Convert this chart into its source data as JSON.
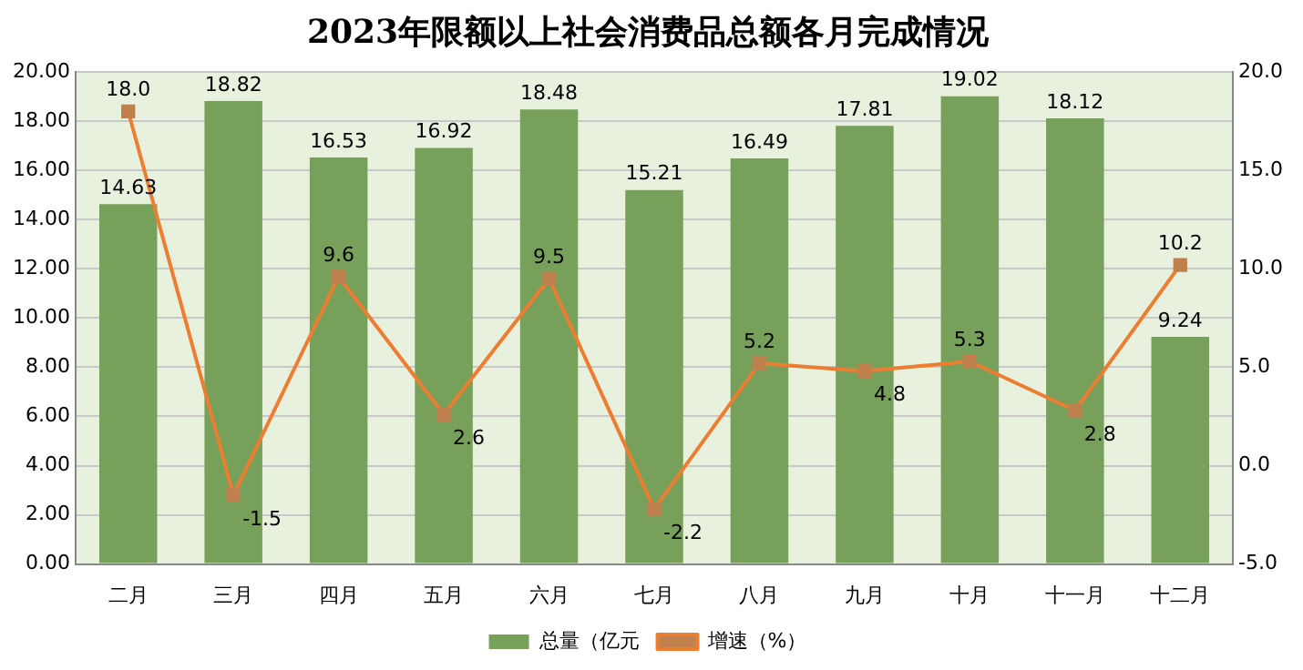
{
  "chart_data": {
    "type": "bar",
    "title": "2023年限额以上社会消费品总额各月完成情况",
    "categories": [
      "二月",
      "三月",
      "四月",
      "五月",
      "六月",
      "七月",
      "八月",
      "九月",
      "十月",
      "十一月",
      "十二月"
    ],
    "series": [
      {
        "name": "总量（亿元",
        "color": "#77a05a",
        "values": [
          14.63,
          18.82,
          16.53,
          16.92,
          18.48,
          15.21,
          16.49,
          17.81,
          19.02,
          18.12,
          9.24
        ],
        "value_labels": [
          "14.63",
          "18.82",
          "16.53",
          "16.92",
          "18.48",
          "15.21",
          "16.49",
          "17.81",
          "19.02",
          "18.12",
          "9.24"
        ]
      },
      {
        "name": "增速（%）",
        "type": "line",
        "axis": "y2",
        "color": "#ed7d31",
        "values": [
          18.0,
          -1.5,
          9.6,
          2.6,
          9.5,
          -2.2,
          5.2,
          4.8,
          5.3,
          2.8,
          10.2
        ],
        "value_labels": [
          "18.0",
          "-1.5",
          "9.6",
          "2.6",
          "9.5",
          "-2.2",
          "5.2",
          "4.8",
          "5.3",
          "2.8",
          "10.2"
        ]
      }
    ],
    "ylim": [
      0,
      20
    ],
    "yticks": [
      {
        "value": 0,
        "label": "0.00"
      },
      {
        "value": 2,
        "label": "2.00"
      },
      {
        "value": 4,
        "label": "4.00"
      },
      {
        "value": 6,
        "label": "6.00"
      },
      {
        "value": 8,
        "label": "8.00"
      },
      {
        "value": 10,
        "label": "10.00"
      },
      {
        "value": 12,
        "label": "12.00"
      },
      {
        "value": 14,
        "label": "14.00"
      },
      {
        "value": 16,
        "label": "16.00"
      },
      {
        "value": 18,
        "label": "18.00"
      },
      {
        "value": 20,
        "label": "20.00"
      }
    ],
    "y2lim": [
      -5,
      20
    ],
    "y2ticks": [
      {
        "value": -5,
        "label": "-5.0"
      },
      {
        "value": 0,
        "label": "0.0"
      },
      {
        "value": 5,
        "label": "5.0"
      },
      {
        "value": 10,
        "label": "10.0"
      },
      {
        "value": 15,
        "label": "15.0"
      },
      {
        "value": 20,
        "label": "20.0"
      }
    ],
    "grid": "y",
    "legend": "bottom",
    "marker": "square",
    "line_style": "solid"
  }
}
